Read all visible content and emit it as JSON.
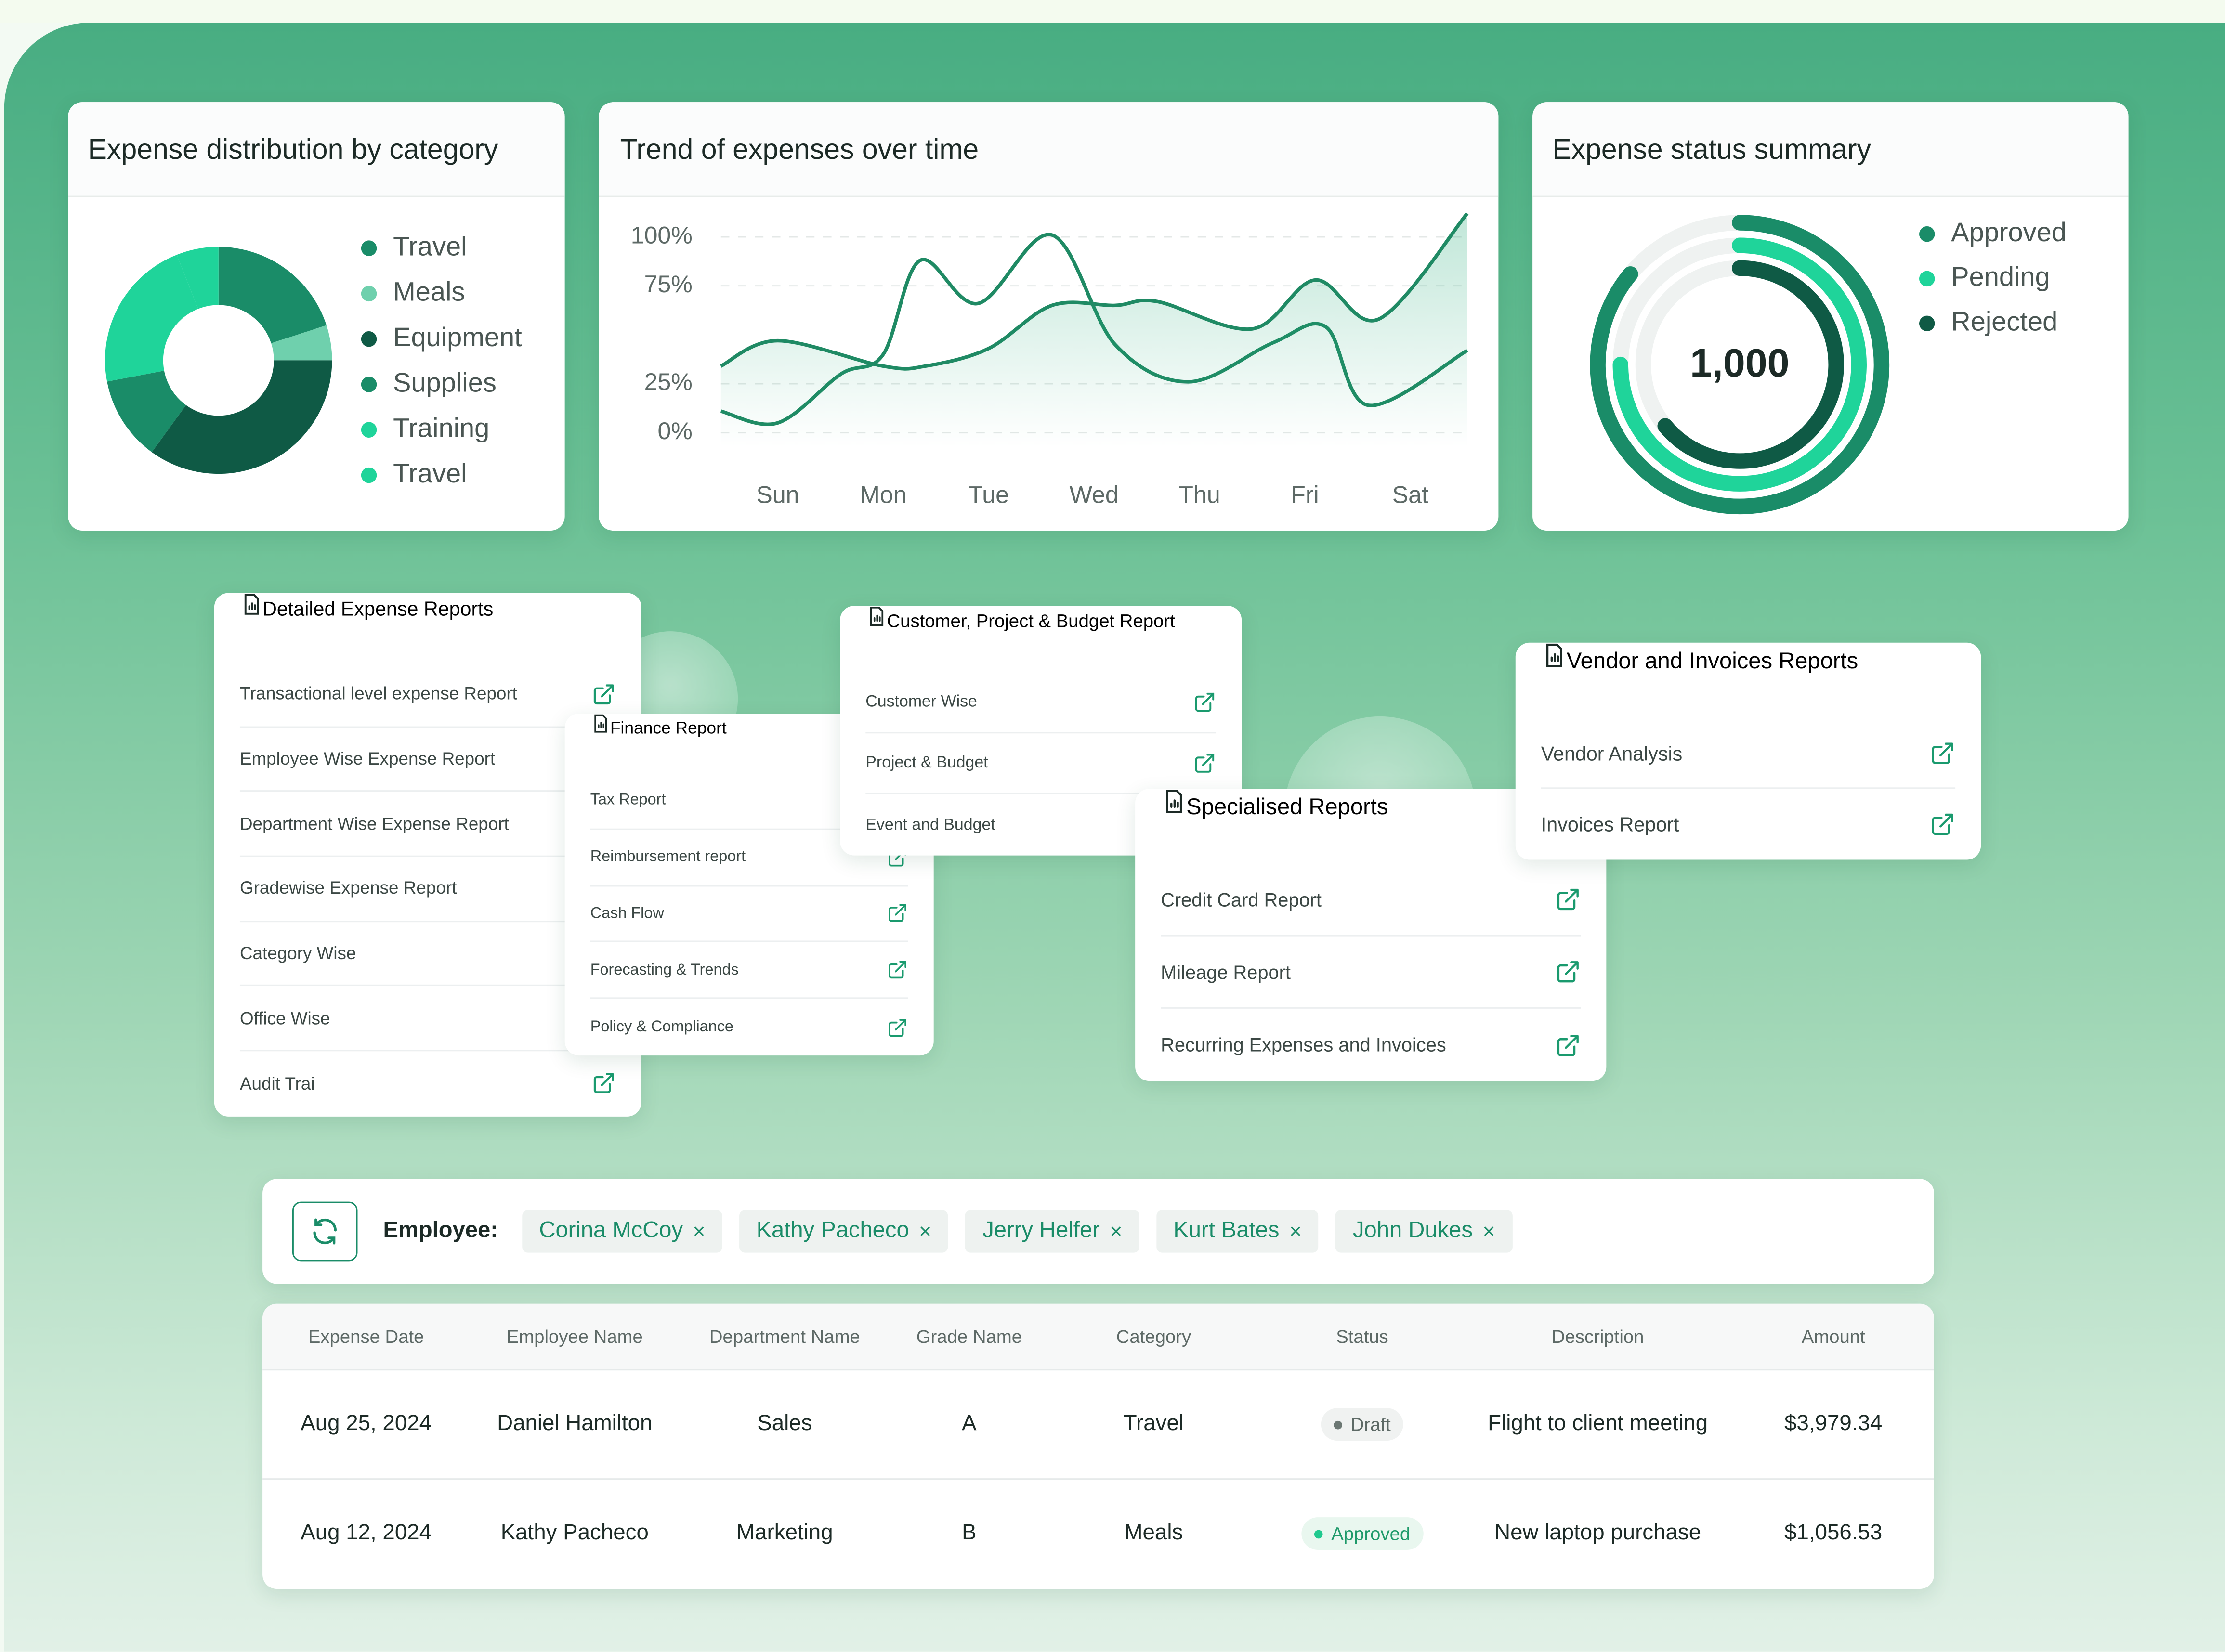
{
  "chart_data": [
    {
      "type": "pie",
      "title": "Expense distribution by category",
      "categories": [
        "Travel",
        "Meals",
        "Equipment",
        "Supplies",
        "Training",
        "Travel"
      ],
      "values": [
        20,
        5,
        35,
        12,
        22,
        6
      ],
      "colors": [
        "#1a8c68",
        "#6fd0ad",
        "#0f5a45",
        "#1a8c68",
        "#1fd49a",
        "#1fd49a"
      ]
    },
    {
      "type": "line",
      "title": "Trend of expenses over time",
      "xlim": [
        -0.54,
        6.54
      ],
      "xticks": [
        {
          "value": 0,
          "label": "Sun"
        },
        {
          "value": 1,
          "label": "Mon"
        },
        {
          "value": 2,
          "label": "Tue"
        },
        {
          "value": 3,
          "label": "Wed"
        },
        {
          "value": 4,
          "label": "Thu"
        },
        {
          "value": 5,
          "label": "Fri"
        },
        {
          "value": 6,
          "label": "Sat"
        }
      ],
      "ylim": [
        0,
        100
      ],
      "yticks": [
        {
          "value": 100,
          "label": "100%"
        },
        {
          "value": 75,
          "label": "75%"
        },
        {
          "value": 25,
          "label": "25%"
        },
        {
          "value": 0,
          "label": "0%"
        }
      ],
      "grid": true,
      "series": [
        {
          "color": "#1f8a64",
          "x": [
            -0.54,
            0,
            0.6,
            1.0,
            1.35,
            1.9,
            2.6,
            3.2,
            3.9,
            4.7,
            5.2,
            5.6,
            6.54
          ],
          "values": [
            11,
            5,
            30,
            40,
            88,
            66,
            101,
            45,
            26,
            46,
            54,
            14,
            42
          ]
        },
        {
          "color": "#1f8a64",
          "x": [
            -0.54,
            0,
            1.0,
            1.4,
            2.0,
            2.6,
            3.2,
            3.6,
            4.5,
            5.1,
            5.7,
            6.54
          ],
          "values": [
            34,
            47,
            34,
            34,
            43,
            65,
            65,
            67,
            53,
            78,
            58,
            112
          ],
          "area": true
        }
      ]
    },
    {
      "type": "radial",
      "title": "Expense status summary",
      "center_label": "1,000",
      "categories": [
        "Approved",
        "Pending",
        "Rejected"
      ],
      "values": [
        86,
        75,
        64
      ],
      "colors": [
        "#1a8c68",
        "#1fd49a",
        "#0f5a45"
      ]
    }
  ],
  "reports": [
    {
      "title": "Detailed Expense Reports",
      "items": [
        "Transactional level expense Report",
        "Employee Wise Expense Report",
        "Department Wise Expense Report",
        "Gradewise Expense Report",
        "Category Wise",
        "Office Wise",
        "Audit Trai"
      ]
    },
    {
      "title": "Finance Report",
      "items": [
        "Tax Report",
        "Reimbursement report",
        "Cash Flow",
        "Forecasting & Trends",
        "Policy & Compliance"
      ]
    },
    {
      "title": "Customer, Project & Budget Report",
      "items": [
        "Customer Wise",
        "Project & Budget",
        "Event and Budget"
      ]
    },
    {
      "title": "Specialised Reports",
      "items": [
        "Credit Card Report",
        "Mileage Report",
        "Recurring Expenses and Invoices"
      ]
    },
    {
      "title": "Vendor and Invoices Reports",
      "items": [
        "Vendor Analysis",
        "Invoices Report"
      ]
    }
  ],
  "filter": {
    "label": "Employee:",
    "chips": [
      "Corina McCoy",
      "Kathy Pacheco",
      "Jerry Helfer",
      "Kurt Bates",
      "John Dukes"
    ]
  },
  "table": {
    "columns": [
      "Expense Date",
      "Employee Name",
      "Department Name",
      "Grade Name",
      "Category",
      "Status",
      "Description",
      "Amount"
    ],
    "rows": [
      [
        "Aug 25, 2024",
        "Daniel Hamilton",
        "Sales",
        "A",
        "Travel",
        "Draft",
        "Flight to client meeting",
        "$3,979.34"
      ],
      [
        "Aug 12, 2024",
        "Kathy Pacheco",
        "Marketing",
        "B",
        "Meals",
        "Approved",
        "New laptop purchase",
        "$1,056.53"
      ]
    ]
  }
}
